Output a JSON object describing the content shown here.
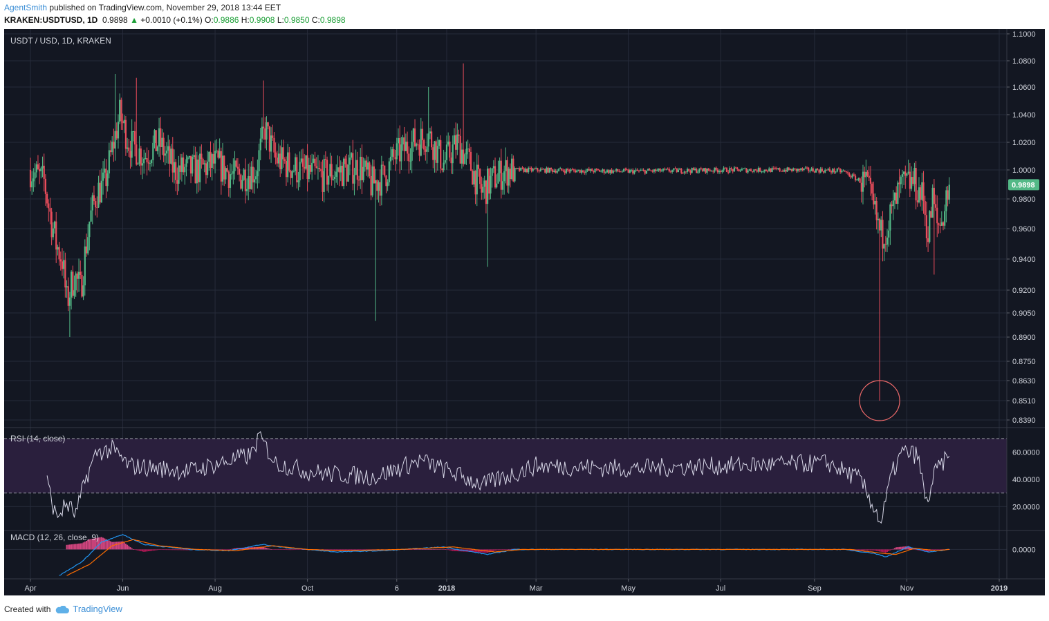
{
  "header": {
    "author": "AgentSmith",
    "published": "published on TradingView.com, November 29, 2018 13:44 EET",
    "symbol": "KRAKEN:USDTUSD, 1D",
    "price": "0.9898",
    "change": "+0.0010 (+0.1%)",
    "o_label": "O:",
    "o_value": "0.9886",
    "h_label": "H:",
    "h_value": "0.9908",
    "l_label": "L:",
    "l_value": "0.9850",
    "c_label": "C:",
    "c_value": "0.9898"
  },
  "footer": {
    "created_with": "Created with",
    "brand": "TradingView"
  },
  "colors": {
    "background": "#131722",
    "up": "#53b987",
    "down": "#eb4d5c",
    "rsi": "#d8d8e8",
    "macd": "#2196f3",
    "signal": "#ff6d00",
    "highlight_circle": "#f26b6b",
    "last_price_badge": "#53b987"
  },
  "chart_data": [
    {
      "type": "candlestick",
      "legend": "USDT / USD, 1D, KRAKEN",
      "last_price_label": "0.9898",
      "y_ticks": [
        "1.1000",
        "1.0800",
        "1.0600",
        "1.0400",
        "1.0200",
        "1.0000",
        "0.9800",
        "0.9600",
        "0.9400",
        "0.9200",
        "0.9050",
        "0.8900",
        "0.8750",
        "0.8630",
        "0.8510",
        "0.8390"
      ],
      "x_ticks": [
        "Apr",
        "Jun",
        "Aug",
        "Oct",
        "6",
        "2018",
        "Mar",
        "May",
        "Jul",
        "Sep",
        "Nov",
        "2019"
      ],
      "x_range": [
        "2017-04-01",
        "2019-01-01"
      ],
      "anchors": [
        {
          "date": "2017-04-01",
          "close": 1.0
        },
        {
          "date": "2017-04-10",
          "close": 0.992
        },
        {
          "date": "2017-04-14",
          "close": 0.97
        },
        {
          "date": "2017-04-18",
          "close": 0.95
        },
        {
          "date": "2017-04-22",
          "close": 0.94
        },
        {
          "date": "2017-04-25",
          "close": 0.912
        },
        {
          "date": "2017-04-30",
          "close": 0.93
        },
        {
          "date": "2017-05-04",
          "close": 0.92
        },
        {
          "date": "2017-05-10",
          "close": 0.965
        },
        {
          "date": "2017-05-15",
          "close": 0.985
        },
        {
          "date": "2017-05-20",
          "close": 0.99
        },
        {
          "date": "2017-05-24",
          "close": 1.01
        },
        {
          "date": "2017-05-30",
          "close": 1.04
        },
        {
          "date": "2017-06-05",
          "close": 1.02
        },
        {
          "date": "2017-06-15",
          "close": 1.01
        },
        {
          "date": "2017-06-25",
          "close": 1.02
        },
        {
          "date": "2017-07-05",
          "close": 1.0
        },
        {
          "date": "2017-07-20",
          "close": 1.0
        },
        {
          "date": "2017-08-01",
          "close": 1.005
        },
        {
          "date": "2017-08-15",
          "close": 0.995
        },
        {
          "date": "2017-08-28",
          "close": 1.0
        },
        {
          "date": "2017-09-03",
          "close": 1.03
        },
        {
          "date": "2017-09-10",
          "close": 1.008
        },
        {
          "date": "2017-09-25",
          "close": 1.0
        },
        {
          "date": "2017-10-10",
          "close": 0.996
        },
        {
          "date": "2017-10-25",
          "close": 1.0
        },
        {
          "date": "2017-11-05",
          "close": 1.003
        },
        {
          "date": "2017-11-12",
          "close": 0.99
        },
        {
          "date": "2017-11-20",
          "close": 0.995
        },
        {
          "date": "2017-11-28",
          "close": 1.01
        },
        {
          "date": "2017-12-10",
          "close": 1.02
        },
        {
          "date": "2017-12-20",
          "close": 1.025
        },
        {
          "date": "2017-12-30",
          "close": 1.005
        },
        {
          "date": "2018-01-08",
          "close": 1.02
        },
        {
          "date": "2018-01-16",
          "close": 1.005
        },
        {
          "date": "2018-01-24",
          "close": 0.985
        },
        {
          "date": "2018-02-02",
          "close": 0.995
        },
        {
          "date": "2018-02-10",
          "close": 1.0
        },
        {
          "date": "2018-03-01",
          "close": 1.0
        },
        {
          "date": "2018-05-01",
          "close": 0.999
        },
        {
          "date": "2018-07-01",
          "close": 1.0
        },
        {
          "date": "2018-09-01",
          "close": 1.0
        },
        {
          "date": "2018-09-20",
          "close": 0.999
        },
        {
          "date": "2018-10-05",
          "close": 0.99
        },
        {
          "date": "2018-10-15",
          "close": 0.955
        },
        {
          "date": "2018-10-22",
          "close": 0.97
        },
        {
          "date": "2018-10-28",
          "close": 0.988
        },
        {
          "date": "2018-11-05",
          "close": 0.992
        },
        {
          "date": "2018-11-12",
          "close": 0.98
        },
        {
          "date": "2018-11-15",
          "close": 0.955
        },
        {
          "date": "2018-11-18",
          "close": 0.98
        },
        {
          "date": "2018-11-21",
          "close": 0.962
        },
        {
          "date": "2018-11-24",
          "close": 0.965
        },
        {
          "date": "2018-11-29",
          "close": 0.9898
        }
      ],
      "spikes": [
        {
          "date": "2017-04-27",
          "low": 0.89
        },
        {
          "date": "2017-05-27",
          "high": 1.07
        },
        {
          "date": "2017-06-10",
          "high": 1.067
        },
        {
          "date": "2017-09-02",
          "high": 1.065
        },
        {
          "date": "2017-11-15",
          "low": 0.9
        },
        {
          "date": "2017-12-20",
          "high": 1.06
        },
        {
          "date": "2018-01-12",
          "high": 1.078
        },
        {
          "date": "2018-01-28",
          "low": 0.935
        },
        {
          "date": "2018-10-14",
          "low": 0.851
        },
        {
          "date": "2018-11-19",
          "low": 0.93
        }
      ],
      "annotation": {
        "type": "circle",
        "date": "2018-10-14",
        "value": 0.851
      }
    },
    {
      "type": "line",
      "legend": "RSI (14, close)",
      "y_ticks": [
        "60.0000",
        "40.0000",
        "20.0000"
      ],
      "bands": [
        70,
        30
      ],
      "y_range": [
        5,
        75
      ],
      "anchors": [
        {
          "date": "2017-04-12",
          "value": 38
        },
        {
          "date": "2017-04-18",
          "value": 12
        },
        {
          "date": "2017-04-25",
          "value": 22
        },
        {
          "date": "2017-05-01",
          "value": 14
        },
        {
          "date": "2017-05-08",
          "value": 42
        },
        {
          "date": "2017-05-15",
          "value": 60
        },
        {
          "date": "2017-05-25",
          "value": 62
        },
        {
          "date": "2017-06-05",
          "value": 50
        },
        {
          "date": "2017-07-15",
          "value": 46
        },
        {
          "date": "2017-08-25",
          "value": 58
        },
        {
          "date": "2017-08-30",
          "value": 72
        },
        {
          "date": "2017-09-10",
          "value": 52
        },
        {
          "date": "2017-10-01",
          "value": 46
        },
        {
          "date": "2017-10-15",
          "value": 44
        },
        {
          "date": "2017-11-15",
          "value": 42
        },
        {
          "date": "2017-12-15",
          "value": 54
        },
        {
          "date": "2018-01-25",
          "value": 36
        },
        {
          "date": "2018-03-01",
          "value": 50
        },
        {
          "date": "2018-05-01",
          "value": 48
        },
        {
          "date": "2018-07-01",
          "value": 50
        },
        {
          "date": "2018-09-10",
          "value": 52
        },
        {
          "date": "2018-10-01",
          "value": 40
        },
        {
          "date": "2018-10-08",
          "value": 25
        },
        {
          "date": "2018-10-15",
          "value": 8
        },
        {
          "date": "2018-10-22",
          "value": 44
        },
        {
          "date": "2018-10-29",
          "value": 60
        },
        {
          "date": "2018-11-08",
          "value": 58
        },
        {
          "date": "2018-11-14",
          "value": 22
        },
        {
          "date": "2018-11-20",
          "value": 46
        },
        {
          "date": "2018-11-29",
          "value": 57
        }
      ]
    },
    {
      "type": "line",
      "legend": "MACD (12, 26, close, 9)",
      "y_ticks": [
        "0.0000"
      ],
      "y_range": [
        -0.022,
        0.013
      ],
      "series": [
        {
          "anchors": [
            {
              "date": "2017-04-20",
              "value": -0.021
            },
            {
              "date": "2017-05-05",
              "value": -0.01
            },
            {
              "date": "2017-05-18",
              "value": 0.006
            },
            {
              "date": "2017-06-01",
              "value": 0.012
            },
            {
              "date": "2017-06-15",
              "value": 0.004
            },
            {
              "date": "2017-07-15",
              "value": 0.0
            },
            {
              "date": "2017-08-10",
              "value": -0.001
            },
            {
              "date": "2017-09-01",
              "value": 0.004
            },
            {
              "date": "2017-09-20",
              "value": 0.001
            },
            {
              "date": "2017-10-20",
              "value": -0.002
            },
            {
              "date": "2017-11-20",
              "value": -0.001
            },
            {
              "date": "2017-12-30",
              "value": 0.002
            },
            {
              "date": "2018-01-28",
              "value": -0.004
            },
            {
              "date": "2018-02-15",
              "value": 0.0
            },
            {
              "date": "2018-09-20",
              "value": 0.0
            },
            {
              "date": "2018-10-10",
              "value": -0.003
            },
            {
              "date": "2018-10-18",
              "value": -0.006
            },
            {
              "date": "2018-11-02",
              "value": 0.002
            },
            {
              "date": "2018-11-15",
              "value": -0.002
            },
            {
              "date": "2018-11-29",
              "value": 0.0
            }
          ]
        },
        {
          "anchors": [
            {
              "date": "2017-04-25",
              "value": -0.021
            },
            {
              "date": "2017-05-10",
              "value": -0.012
            },
            {
              "date": "2017-05-25",
              "value": 0.003
            },
            {
              "date": "2017-06-08",
              "value": 0.008
            },
            {
              "date": "2017-06-25",
              "value": 0.003
            },
            {
              "date": "2017-07-20",
              "value": 0.0
            },
            {
              "date": "2017-08-15",
              "value": -0.001
            },
            {
              "date": "2017-09-08",
              "value": 0.003
            },
            {
              "date": "2017-10-01",
              "value": 0.0
            },
            {
              "date": "2017-10-25",
              "value": -0.001
            },
            {
              "date": "2017-12-01",
              "value": 0.0
            },
            {
              "date": "2018-01-05",
              "value": 0.002
            },
            {
              "date": "2018-02-02",
              "value": -0.002
            },
            {
              "date": "2018-02-20",
              "value": 0.0
            },
            {
              "date": "2018-09-25",
              "value": 0.0
            },
            {
              "date": "2018-10-15",
              "value": -0.003
            },
            {
              "date": "2018-10-25",
              "value": -0.004
            },
            {
              "date": "2018-11-06",
              "value": 0.001
            },
            {
              "date": "2018-11-20",
              "value": -0.001
            },
            {
              "date": "2018-11-29",
              "value": 0.0
            }
          ]
        }
      ]
    }
  ]
}
